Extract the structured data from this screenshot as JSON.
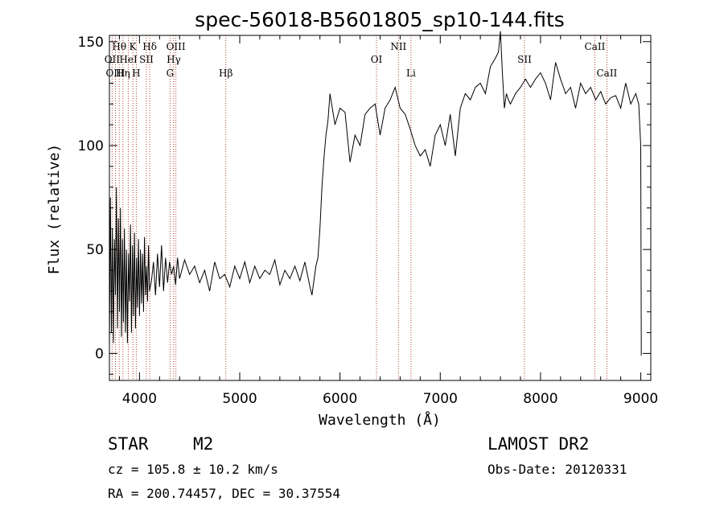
{
  "chart_data": {
    "type": "line",
    "title": "spec-56018-B5601805_sp10-144.fits",
    "xlabel": "Wavelength (Å)",
    "ylabel": "Flux (relative)",
    "xlim": [
      3700,
      9100
    ],
    "ylim": [
      -13,
      153
    ],
    "xticks": [
      4000,
      5000,
      6000,
      7000,
      8000,
      9000
    ],
    "yticks": [
      0,
      50,
      100,
      150
    ],
    "spectral_lines": [
      {
        "label": "Hθ",
        "wavelength": 3798,
        "row": 1
      },
      {
        "label": "K",
        "wavelength": 3934,
        "row": 1
      },
      {
        "label": "Hδ",
        "wavelength": 4102,
        "row": 1
      },
      {
        "label": "OIII",
        "wavelength": 4363,
        "row": 1
      },
      {
        "label": "OII",
        "wavelength": 3727,
        "row": 2
      },
      {
        "label": "HeI",
        "wavelength": 3889,
        "row": 2
      },
      {
        "label": "SII",
        "wavelength": 4069,
        "row": 2
      },
      {
        "label": "Hγ",
        "wavelength": 4341,
        "row": 2
      },
      {
        "label": "OIII",
        "wavelength": 3760,
        "row": 3
      },
      {
        "label": "Hη",
        "wavelength": 3835,
        "row": 3
      },
      {
        "label": "H",
        "wavelength": 3968,
        "row": 3
      },
      {
        "label": "G",
        "wavelength": 4305,
        "row": 3
      },
      {
        "label": "Hβ",
        "wavelength": 4861,
        "row": 3
      },
      {
        "label": "NII",
        "wavelength": 6583,
        "row": 1
      },
      {
        "label": "OI",
        "wavelength": 6364,
        "row": 2
      },
      {
        "label": "Li",
        "wavelength": 6708,
        "row": 3
      },
      {
        "label": "CaII",
        "wavelength": 8542,
        "row": 1
      },
      {
        "label": "SII",
        "wavelength": 7840,
        "row": 2
      },
      {
        "label": "CaII",
        "wavelength": 8662,
        "row": 3
      }
    ],
    "series": [
      {
        "x": [
          3700,
          3710,
          3720,
          3730,
          3740,
          3750,
          3760,
          3770,
          3780,
          3790,
          3800,
          3810,
          3820,
          3830,
          3840,
          3850,
          3860,
          3870,
          3880,
          3890,
          3900,
          3910,
          3920,
          3930,
          3940,
          3950,
          3960,
          3970,
          3980,
          3990,
          4000,
          4010,
          4020,
          4030,
          4040,
          4050,
          4060,
          4070,
          4080,
          4090,
          4100,
          4120,
          4140,
          4160,
          4180,
          4200,
          4220,
          4240,
          4260,
          4280,
          4300,
          4320,
          4340,
          4360,
          4380,
          4400,
          4450,
          4500,
          4550,
          4600,
          4650,
          4700,
          4750,
          4800,
          4850,
          4900,
          4950,
          5000,
          5050,
          5100,
          5150,
          5200,
          5250,
          5300,
          5350,
          5400,
          5450,
          5500,
          5550,
          5600,
          5650,
          5700,
          5720,
          5740,
          5760,
          5780,
          5800,
          5820,
          5840,
          5860,
          5880,
          5900,
          5950,
          6000,
          6050,
          6100,
          6150,
          6200,
          6250,
          6300,
          6350,
          6400,
          6450,
          6500,
          6550,
          6600,
          6650,
          6700,
          6750,
          6800,
          6850,
          6900,
          6950,
          7000,
          7050,
          7100,
          7150,
          7200,
          7250,
          7300,
          7350,
          7400,
          7450,
          7500,
          7550,
          7580,
          7600,
          7620,
          7640,
          7660,
          7680,
          7700,
          7750,
          7800,
          7850,
          7900,
          7950,
          8000,
          8050,
          8100,
          8150,
          8200,
          8250,
          8300,
          8350,
          8400,
          8450,
          8500,
          8550,
          8600,
          8650,
          8700,
          8750,
          8800,
          8850,
          8900,
          8950,
          8980,
          9000,
          9005
        ],
        "y": [
          2,
          75,
          10,
          60,
          5,
          55,
          28,
          80,
          12,
          65,
          20,
          70,
          8,
          55,
          15,
          60,
          10,
          50,
          5,
          48,
          25,
          62,
          10,
          52,
          18,
          58,
          12,
          46,
          22,
          55,
          18,
          50,
          24,
          48,
          20,
          56,
          28,
          42,
          25,
          52,
          30,
          35,
          44,
          28,
          48,
          32,
          52,
          30,
          46,
          34,
          44,
          38,
          42,
          33,
          46,
          36,
          45,
          38,
          42,
          34,
          40,
          30,
          44,
          36,
          38,
          32,
          42,
          36,
          44,
          34,
          42,
          36,
          40,
          38,
          45,
          33,
          40,
          36,
          42,
          35,
          44,
          32,
          28,
          35,
          42,
          46,
          60,
          80,
          94,
          105,
          112,
          125,
          110,
          118,
          116,
          92,
          105,
          100,
          115,
          118,
          120,
          105,
          118,
          122,
          128,
          118,
          115,
          108,
          100,
          95,
          98,
          90,
          105,
          110,
          100,
          115,
          95,
          118,
          125,
          122,
          128,
          130,
          125,
          138,
          142,
          145,
          155,
          135,
          118,
          125,
          122,
          120,
          125,
          128,
          132,
          128,
          132,
          135,
          130,
          122,
          140,
          132,
          125,
          128,
          118,
          130,
          125,
          128,
          122,
          126,
          120,
          123,
          124,
          118,
          130,
          120,
          125,
          120,
          100,
          -1
        ]
      }
    ]
  },
  "info": {
    "object_class": "STAR",
    "subclass": "M2",
    "survey": "LAMOST DR2",
    "redshift_text": "cz = 105.8 ± 10.2 km/s",
    "obs_date_text": "Obs-Date: 20120331",
    "coords_text": "RA = 200.74457, DEC =  30.37554"
  }
}
